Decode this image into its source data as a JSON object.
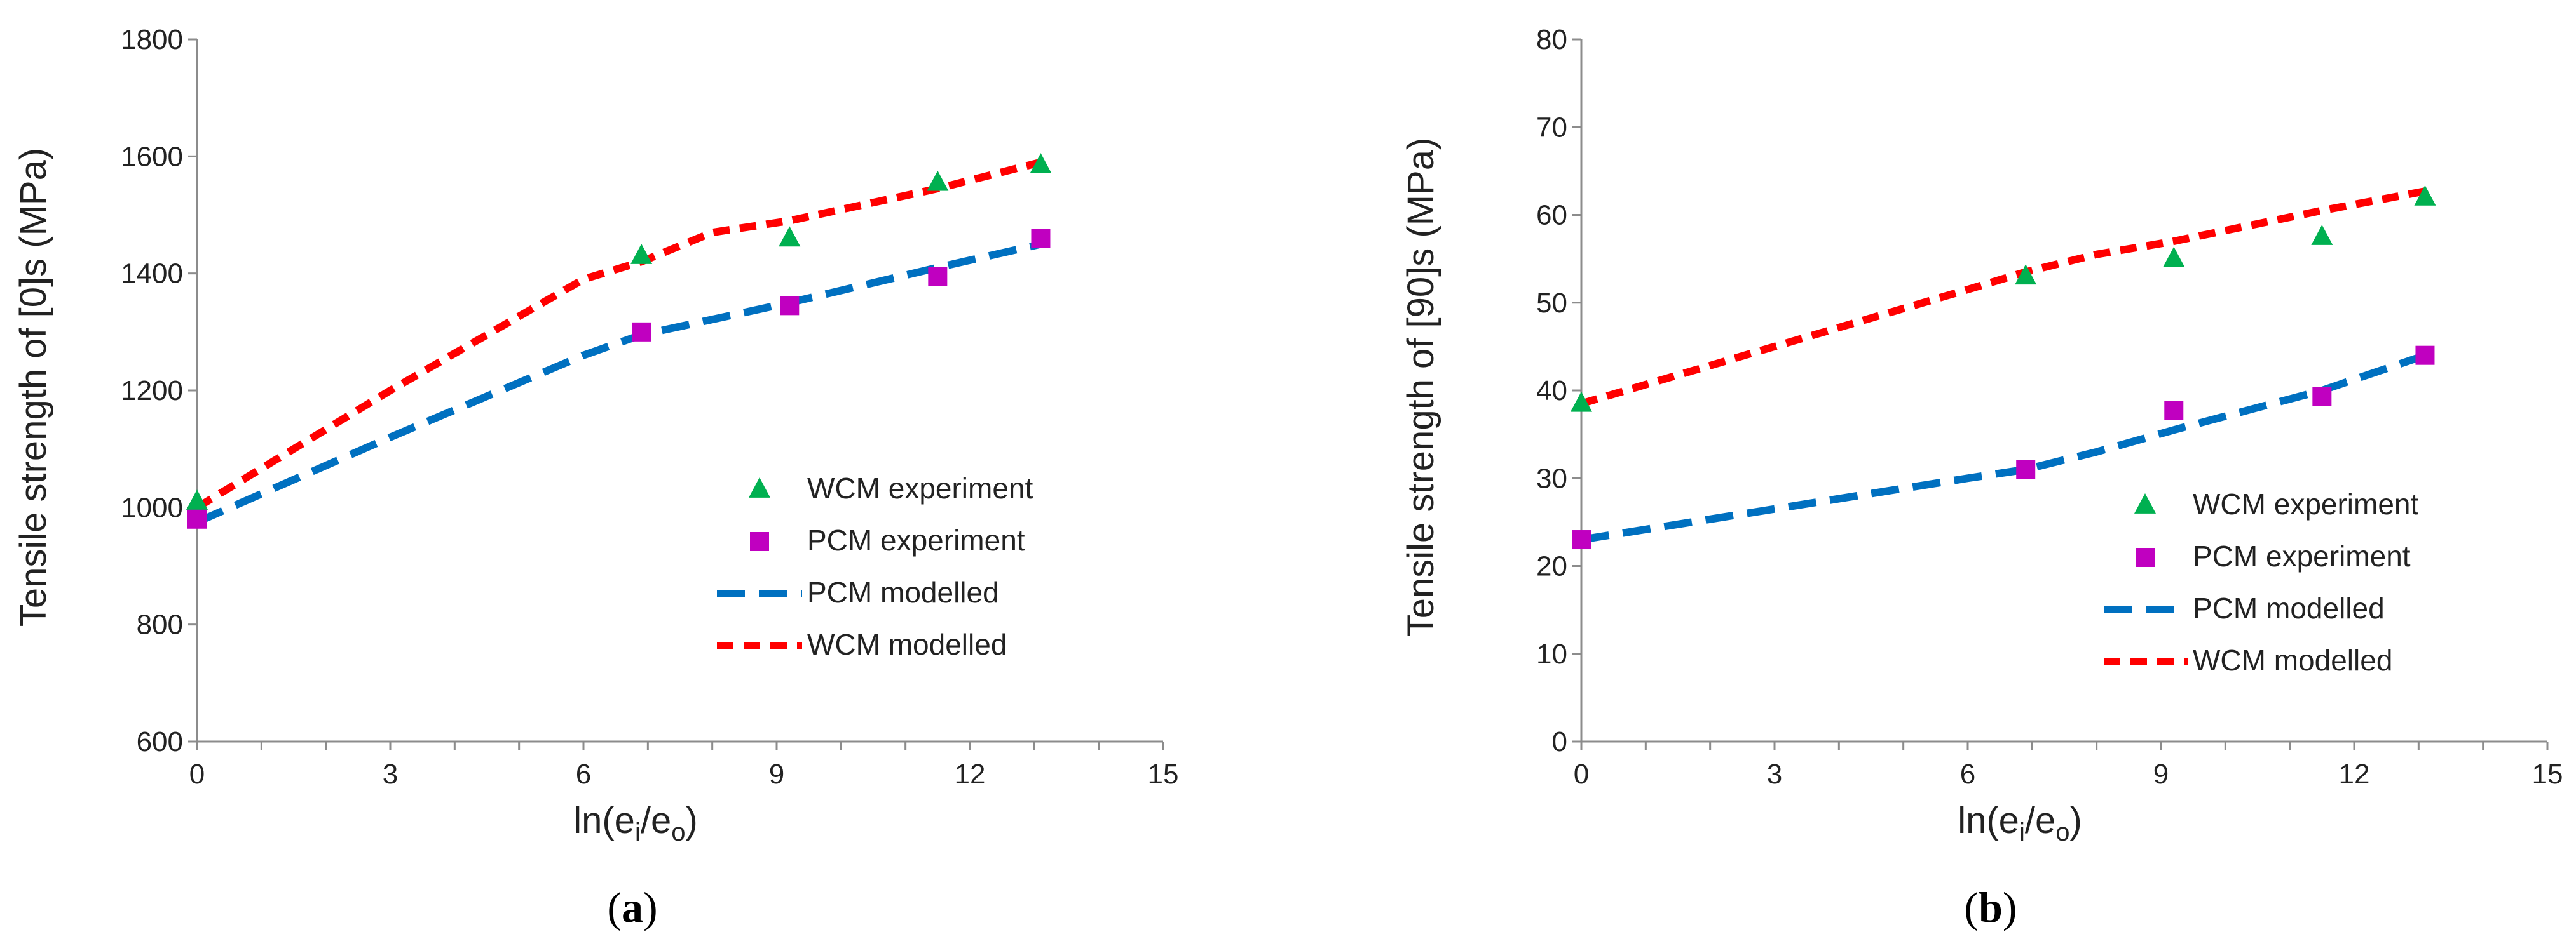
{
  "colors": {
    "axis": "#8c8c8c",
    "wcm": "#00b050",
    "pcm": "#c000c0",
    "pcm_line": "#0070c0",
    "wcm_line": "#ff0000"
  },
  "chart_data": [
    {
      "panel": "a",
      "type": "scatter",
      "ylabel_html": "Tensile strength of [0]s (MPa)",
      "xlabel": {
        "pre": "ln(e",
        "s1": "i",
        "mid": "/e",
        "s2": "o",
        "post": ")"
      },
      "xlim": [
        0,
        15
      ],
      "ylim": [
        600,
        1800
      ],
      "xticks": [
        0,
        3,
        6,
        9,
        12,
        15
      ],
      "yticks": [
        600,
        800,
        1000,
        1200,
        1400,
        1600,
        1800
      ],
      "legend": [
        "WCM experiment",
        "PCM experiment",
        "PCM modelled",
        "WCM modelled"
      ],
      "series": [
        {
          "name": "WCM experiment",
          "kind": "triangle",
          "color": "#00b050",
          "x": [
            0,
            6.9,
            9.2,
            11.5,
            13.1
          ],
          "y": [
            1010,
            1430,
            1460,
            1555,
            1585
          ]
        },
        {
          "name": "PCM experiment",
          "kind": "square",
          "color": "#c000c0",
          "x": [
            0,
            6.9,
            9.2,
            11.5,
            13.1
          ],
          "y": [
            980,
            1300,
            1345,
            1395,
            1460
          ]
        },
        {
          "name": "PCM modelled",
          "kind": "line",
          "color": "#0070c0",
          "x": [
            0,
            3,
            6,
            6.9,
            9.2,
            11.5,
            13.1
          ],
          "y": [
            975,
            1120,
            1260,
            1295,
            1350,
            1410,
            1450
          ]
        },
        {
          "name": "WCM modelled",
          "kind": "line",
          "color": "#ff0000",
          "x": [
            0,
            3,
            6,
            6.9,
            8,
            9.2,
            11.5,
            13.1
          ],
          "y": [
            1000,
            1200,
            1390,
            1420,
            1470,
            1490,
            1545,
            1590
          ]
        }
      ]
    },
    {
      "panel": "b",
      "type": "scatter",
      "ylabel_html": "Tensile strength of [90]s (MPa)",
      "xlabel": {
        "pre": "ln(e",
        "s1": "i",
        "mid": "/e",
        "s2": "o",
        "post": ")"
      },
      "xlim": [
        0,
        15
      ],
      "ylim": [
        0,
        80
      ],
      "xticks": [
        0,
        3,
        6,
        9,
        12,
        15
      ],
      "yticks": [
        0,
        10,
        20,
        30,
        40,
        50,
        60,
        70,
        80
      ],
      "legend": [
        "WCM experiment",
        "PCM experiment",
        "PCM modelled",
        "WCM modelled"
      ],
      "series": [
        {
          "name": "WCM experiment",
          "kind": "triangle",
          "color": "#00b050",
          "x": [
            0,
            6.9,
            9.2,
            11.5,
            13.1
          ],
          "y": [
            38.5,
            53,
            55,
            57.5,
            62
          ]
        },
        {
          "name": "PCM experiment",
          "kind": "square",
          "color": "#c000c0",
          "x": [
            0,
            6.9,
            9.2,
            11.5,
            13.1
          ],
          "y": [
            23,
            31,
            37.7,
            39.3,
            44
          ]
        },
        {
          "name": "PCM modelled",
          "kind": "line",
          "color": "#0070c0",
          "x": [
            0,
            3,
            6,
            6.9,
            8,
            9.2,
            11.5,
            13.1
          ],
          "y": [
            23,
            26.5,
            30,
            31,
            33,
            35.5,
            40,
            44
          ]
        },
        {
          "name": "WCM modelled",
          "kind": "line",
          "color": "#ff0000",
          "x": [
            0,
            3,
            6,
            6.9,
            8,
            9.2,
            11.5,
            13.1
          ],
          "y": [
            38.5,
            45,
            51.5,
            53.5,
            55.5,
            57,
            60.5,
            62.7
          ]
        }
      ]
    }
  ],
  "labels": {
    "a": "a",
    "b": "b",
    "open": "(",
    "close": ")"
  }
}
